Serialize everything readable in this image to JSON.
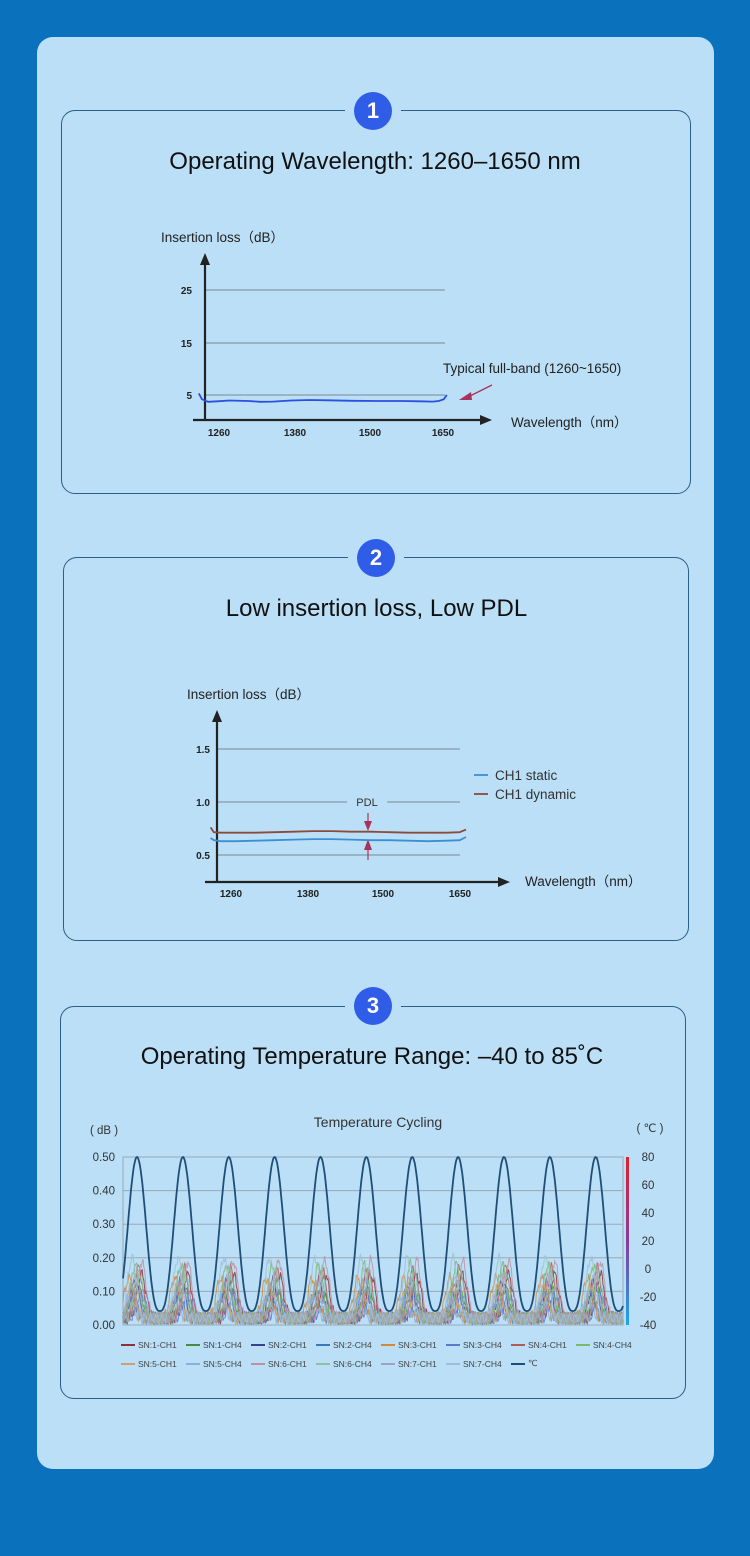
{
  "colors": {
    "page_bg": "#0a72bd",
    "panel_bg": "#badff6",
    "badge": "#2f5de8",
    "card_border": "#2a5f8a"
  },
  "sections": [
    {
      "badge": "1",
      "title": "Operating Wavelength: 1260–1650 nm"
    },
    {
      "badge": "2",
      "title": "Low insertion loss, Low PDL"
    },
    {
      "badge": "3",
      "title": "Operating Temperature Range: –40 to 85˚C"
    }
  ],
  "chart_data": [
    {
      "type": "line",
      "ylabel": "Insertion loss（dB）",
      "xlabel": "Wavelength（nm）",
      "x_ticks": [
        "1260",
        "1380",
        "1500",
        "1650"
      ],
      "y_ticks": [
        "5",
        "15",
        "25"
      ],
      "xlim": [
        1260,
        1650
      ],
      "ylim": [
        0,
        30
      ],
      "annotation": "Typical full-band (1260~1650)",
      "series": [
        {
          "name": "",
          "color": "#2b4fe0",
          "x": [
            1250,
            1255,
            1265,
            1280,
            1300,
            1330,
            1350,
            1370,
            1400,
            1430,
            1460,
            1500,
            1540,
            1580,
            1610,
            1630,
            1640,
            1648,
            1653
          ],
          "y": [
            5.3,
            4.2,
            3.7,
            3.8,
            3.95,
            3.85,
            3.7,
            3.75,
            3.95,
            4.05,
            4.0,
            3.9,
            3.85,
            3.85,
            3.8,
            3.75,
            3.85,
            4.2,
            5.0
          ]
        }
      ]
    },
    {
      "type": "line",
      "ylabel": "Insertion loss（dB）",
      "xlabel": "Wavelength（nm）",
      "x_ticks": [
        "1260",
        "1380",
        "1500",
        "1650"
      ],
      "y_ticks": [
        "0.5",
        "1.0",
        "1.5"
      ],
      "xlim": [
        1260,
        1650
      ],
      "ylim": [
        0.4,
        1.6
      ],
      "annotation": "PDL",
      "series": [
        {
          "name": "CH1 static",
          "color": "#3b8fd8",
          "x": [
            1250,
            1255,
            1265,
            1290,
            1320,
            1350,
            1380,
            1410,
            1440,
            1470,
            1500,
            1530,
            1560,
            1590,
            1620,
            1640,
            1650
          ],
          "y": [
            0.66,
            0.64,
            0.63,
            0.63,
            0.635,
            0.64,
            0.645,
            0.65,
            0.65,
            0.645,
            0.64,
            0.64,
            0.635,
            0.63,
            0.635,
            0.64,
            0.67
          ]
        },
        {
          "name": "CH1 dynamic",
          "color": "#8a4a3c",
          "x": [
            1250,
            1255,
            1265,
            1290,
            1320,
            1350,
            1380,
            1410,
            1440,
            1470,
            1500,
            1530,
            1560,
            1590,
            1620,
            1640,
            1650
          ],
          "y": [
            0.76,
            0.715,
            0.71,
            0.71,
            0.71,
            0.715,
            0.72,
            0.725,
            0.725,
            0.72,
            0.72,
            0.715,
            0.71,
            0.71,
            0.71,
            0.715,
            0.74
          ]
        }
      ]
    },
    {
      "type": "line",
      "title": "Temperature Cycling",
      "ylabel": "( dB )",
      "y2label": "( ℃ )",
      "y_ticks": [
        "0.00",
        "0.10",
        "0.20",
        "0.30",
        "0.40",
        "0.50"
      ],
      "y2_ticks": [
        "-40",
        "-20",
        "0",
        "20",
        "40",
        "60",
        "80"
      ],
      "ylim": [
        0,
        0.5
      ],
      "y2lim": [
        -40,
        80
      ],
      "cycles": 11,
      "series": [
        {
          "name": "SN:1-CH1",
          "color": "#8e2f3a",
          "peak": 0.13
        },
        {
          "name": "SN:1-CH4",
          "color": "#4a8a3a",
          "peak": 0.09
        },
        {
          "name": "SN:2-CH1",
          "color": "#3a3f8e",
          "peak": 0.11
        },
        {
          "name": "SN:2-CH4",
          "color": "#3a78b8",
          "peak": 0.08
        },
        {
          "name": "SN:3-CH1",
          "color": "#d08a3a",
          "peak": 0.12
        },
        {
          "name": "SN:3-CH4",
          "color": "#5a7ad0",
          "peak": 0.07
        },
        {
          "name": "SN:4-CH1",
          "color": "#b05a5a",
          "peak": 0.15
        },
        {
          "name": "SN:4-CH4",
          "color": "#7ab86a",
          "peak": 0.16
        },
        {
          "name": "SN:5-CH1",
          "color": "#d0a070",
          "peak": 0.1
        },
        {
          "name": "SN:5-CH4",
          "color": "#8ab0e0",
          "peak": 0.06
        },
        {
          "name": "SN:6-CH1",
          "color": "#c090a0",
          "peak": 0.17
        },
        {
          "name": "SN:6-CH4",
          "color": "#90c0a0",
          "peak": 0.14
        },
        {
          "name": "SN:7-CH1",
          "color": "#a0a0c0",
          "peak": 0.12
        },
        {
          "name": "SN:7-CH4",
          "color": "#a0c0d0",
          "peak": 0.18
        },
        {
          "name": "℃",
          "color": "#1f4e78",
          "axis": "right",
          "min": -30,
          "max": 80
        }
      ]
    }
  ]
}
